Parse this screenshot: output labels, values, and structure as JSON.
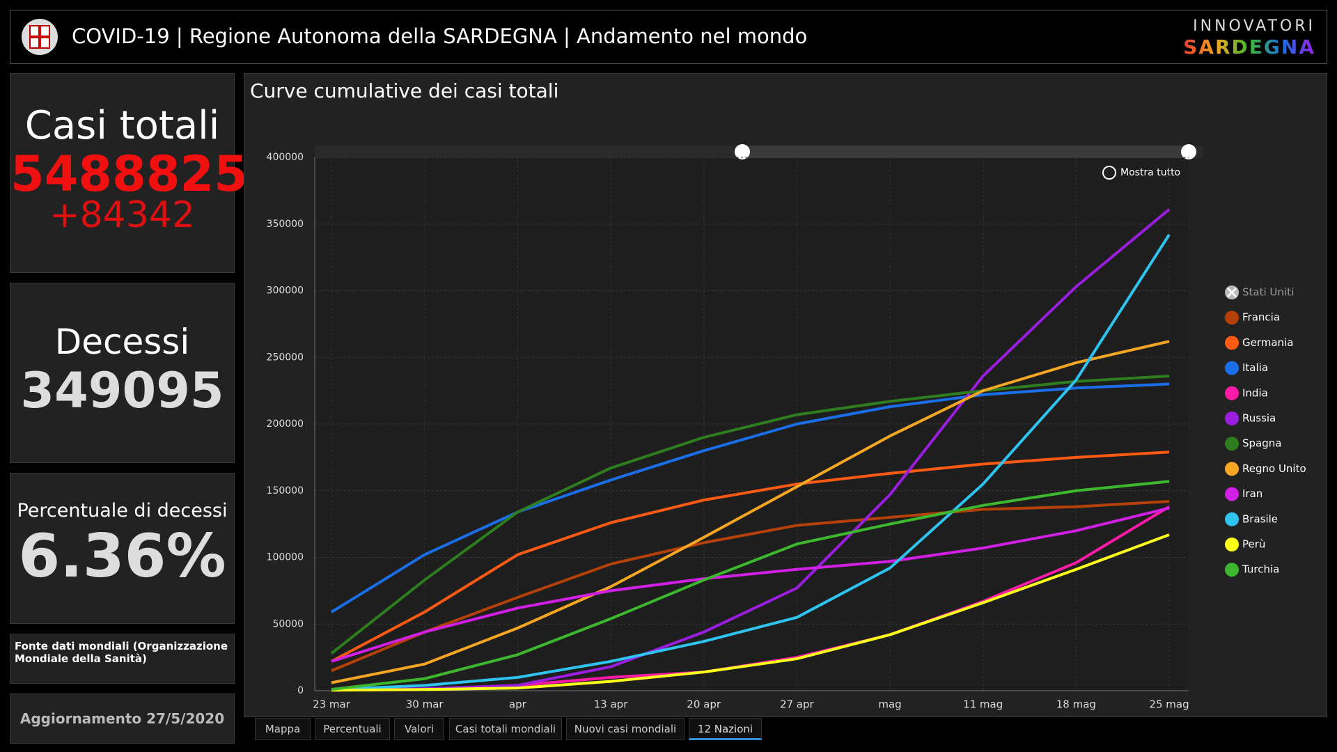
{
  "header": {
    "title": "COVID-19 | Regione Autonoma della SARDEGNA | Andamento nel mondo",
    "logo_top": "INNOVATORI",
    "logo_bottom": "SARDEGNA"
  },
  "panels": {
    "cases": {
      "title": "Casi totali",
      "value": "5488825",
      "delta": "+84342"
    },
    "deaths": {
      "title": "Decessi",
      "value": "349095"
    },
    "rate": {
      "title": "Percentuale di decessi",
      "value": "6.36%"
    },
    "source": "Fonte dati mondiali (Organizzazione Mondiale della Sanità)",
    "update": "Aggiornamento 27/5/2020"
  },
  "tabs": [
    "Mappa",
    "Percentuali",
    "Valori",
    "Casi totali mondiali",
    "Nuovi casi mondiali",
    "12 Nazioni"
  ],
  "active_tab": 5,
  "chart_data": {
    "type": "line",
    "title": "Curve cumulative dei casi totali",
    "zoom_label": "Mostra tutto",
    "grid": true,
    "categories": [
      "23 mar",
      "30 mar",
      "apr",
      "13 apr",
      "20 apr",
      "27 apr",
      "mag",
      "11 mag",
      "18 mag",
      "25 mag"
    ],
    "ylim": [
      0,
      400000
    ],
    "yticks": [
      0,
      50000,
      100000,
      150000,
      200000,
      250000,
      300000,
      350000,
      400000
    ],
    "series": [
      {
        "name": "Stati Uniti",
        "color": "#cccccc",
        "visible": false
      },
      {
        "name": "Francia",
        "color": "#b5400a",
        "values": [
          15000,
          44000,
          70000,
          95000,
          111000,
          124000,
          130000,
          136000,
          138000,
          142000
        ]
      },
      {
        "name": "Germania",
        "color": "#ff5a14",
        "values": [
          22000,
          59000,
          102000,
          126000,
          143000,
          155000,
          163000,
          170000,
          175000,
          179000
        ]
      },
      {
        "name": "Italia",
        "color": "#1a6fe8",
        "values": [
          59000,
          102000,
          134000,
          158000,
          180000,
          200000,
          213000,
          222000,
          227000,
          230000
        ]
      },
      {
        "name": "India",
        "color": "#ff1aa8",
        "values": [
          500,
          1000,
          4000,
          10000,
          14000,
          25000,
          42000,
          67000,
          96000,
          138000
        ]
      },
      {
        "name": "Russia",
        "color": "#9b1ee0",
        "values": [
          400,
          1500,
          4000,
          18000,
          44000,
          77000,
          147000,
          236000,
          303000,
          361000
        ]
      },
      {
        "name": "Spagna",
        "color": "#2e7d1e",
        "values": [
          28000,
          83000,
          134000,
          167000,
          190000,
          207000,
          217000,
          225000,
          232000,
          236000
        ]
      },
      {
        "name": "Regno Unito",
        "color": "#f5a623",
        "values": [
          6000,
          20000,
          47000,
          78000,
          115000,
          153000,
          191000,
          225000,
          246000,
          262000
        ]
      },
      {
        "name": "Iran",
        "color": "#d21fe6",
        "values": [
          22000,
          44000,
          62000,
          75000,
          84000,
          91000,
          97000,
          107000,
          120000,
          137000
        ]
      },
      {
        "name": "Brasile",
        "color": "#2fc3f0",
        "values": [
          900,
          4000,
          10000,
          22000,
          37000,
          55000,
          92000,
          155000,
          233000,
          342000
        ]
      },
      {
        "name": "Perù",
        "color": "#ffff1a",
        "values": [
          400,
          900,
          2000,
          7000,
          14000,
          24000,
          42000,
          66000,
          91000,
          117000
        ]
      },
      {
        "name": "Turchia",
        "color": "#3db82e",
        "values": [
          1000,
          9000,
          27000,
          54000,
          83000,
          110000,
          125000,
          139000,
          150000,
          157000
        ]
      }
    ]
  }
}
